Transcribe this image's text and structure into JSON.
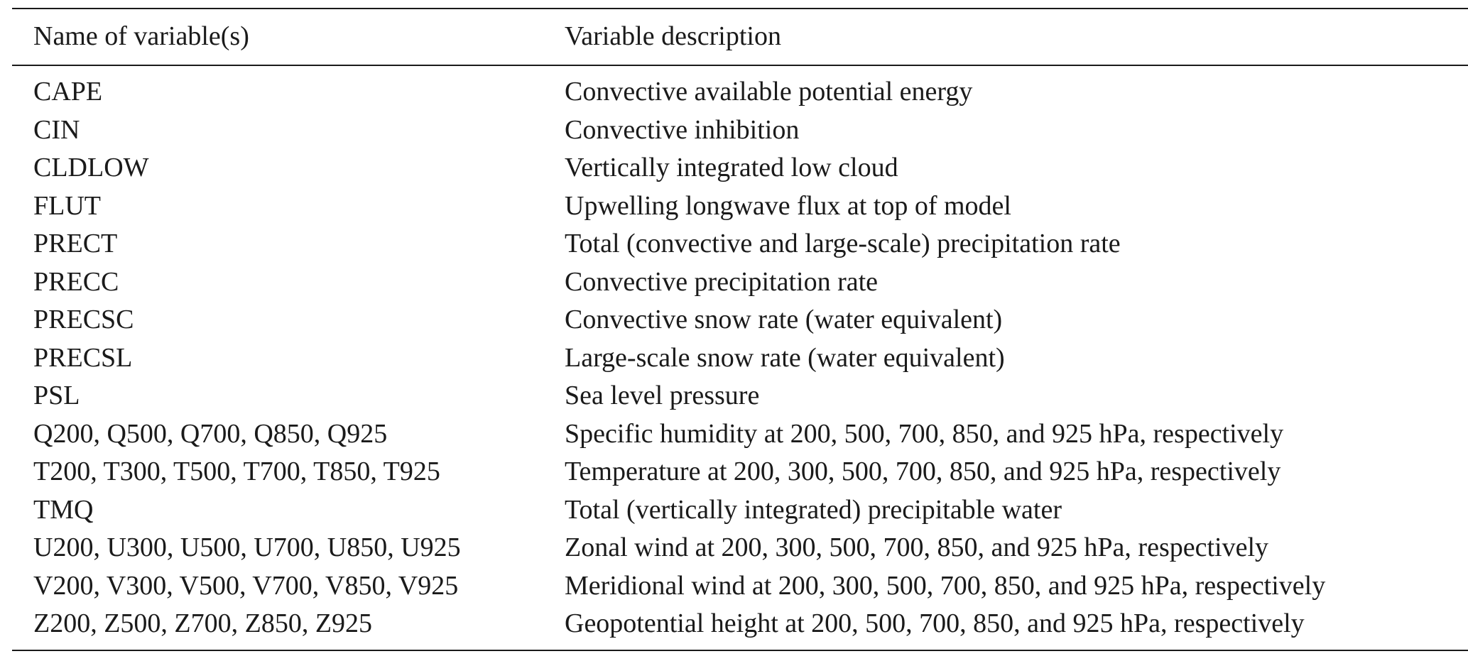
{
  "table": {
    "headers": {
      "name": "Name of variable(s)",
      "description": "Variable description"
    },
    "rows": [
      {
        "name": "CAPE",
        "description": "Convective available potential energy"
      },
      {
        "name": "CIN",
        "description": "Convective inhibition"
      },
      {
        "name": "CLDLOW",
        "description": "Vertically integrated low cloud"
      },
      {
        "name": "FLUT",
        "description": "Upwelling longwave flux at top of model"
      },
      {
        "name": "PRECT",
        "description": "Total (convective and large-scale) precipitation rate"
      },
      {
        "name": "PRECC",
        "description": "Convective precipitation rate"
      },
      {
        "name": "PRECSC",
        "description": "Convective snow rate (water equivalent)"
      },
      {
        "name": "PRECSL",
        "description": "Large-scale snow rate (water equivalent)"
      },
      {
        "name": "PSL",
        "description": "Sea level pressure"
      },
      {
        "name": "Q200, Q500, Q700, Q850, Q925",
        "description": "Specific humidity at 200, 500, 700, 850, and 925 hPa, respectively"
      },
      {
        "name": "T200, T300, T500, T700, T850, T925",
        "description": "Temperature at 200, 300, 500, 700, 850, and 925 hPa, respectively"
      },
      {
        "name": "TMQ",
        "description": "Total (vertically integrated) precipitable water"
      },
      {
        "name": "U200, U300, U500, U700, U850, U925",
        "description": "Zonal wind at 200, 300, 500, 700, 850, and 925 hPa, respectively"
      },
      {
        "name": "V200, V300, V500, V700, V850, V925",
        "description": "Meridional wind at 200, 300, 500, 700, 850, and 925 hPa, respectively"
      },
      {
        "name": "Z200, Z500, Z700, Z850, Z925",
        "description": "Geopotential height at 200, 500, 700, 850, and 925 hPa, respectively"
      }
    ]
  }
}
